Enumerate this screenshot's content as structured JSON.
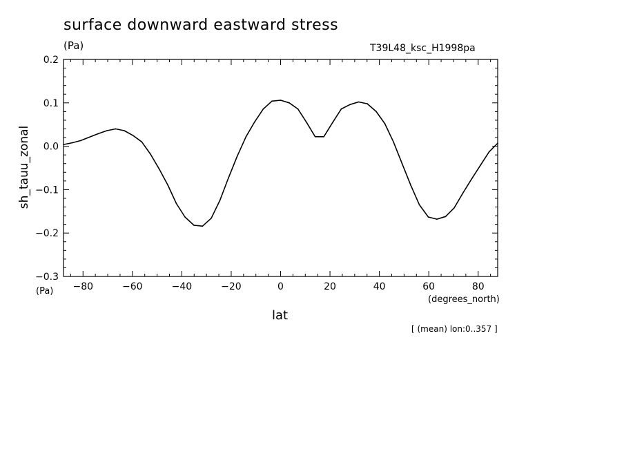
{
  "chart_data": {
    "type": "line",
    "title": "surface downward eastward stress",
    "units_top": "(Pa)",
    "run_label": "T39L48_ksc_H1998pa",
    "ylabel": "sh_tauu_zonal",
    "units_bottom": "(Pa)",
    "xlabel": "lat",
    "xunits": "(degrees_north)",
    "note": "[ (mean) lon:0..357 ]",
    "xlim": [
      -87.9,
      87.9
    ],
    "ylim": [
      -0.3,
      0.2
    ],
    "xticks": [
      "-80",
      "-60",
      "-40",
      "-20",
      "0",
      "20",
      "40",
      "60",
      "80"
    ],
    "yticks": [
      "-0.3",
      "-0.2",
      "-0.1",
      "0.0",
      "0.1",
      "0.2"
    ],
    "grid": false,
    "series": [
      {
        "color": "#000000",
        "x": [
          -87.9,
          -84.4,
          -80.9,
          -77.4,
          -73.8,
          -70.3,
          -66.8,
          -63.3,
          -59.8,
          -56.2,
          -52.7,
          -49.2,
          -45.7,
          -42.2,
          -38.7,
          -35.1,
          -31.6,
          -28.1,
          -24.6,
          -21.1,
          -17.5,
          -14.0,
          -10.5,
          -7.0,
          -3.5,
          0.0,
          3.5,
          7.0,
          10.5,
          14.0,
          17.5,
          21.1,
          24.6,
          28.1,
          31.6,
          35.1,
          38.7,
          42.2,
          45.7,
          49.2,
          52.7,
          56.2,
          59.8,
          63.3,
          66.8,
          70.3,
          73.8,
          77.4,
          80.9,
          84.4,
          87.9
        ],
        "y": [
          0.004,
          0.008,
          0.013,
          0.021,
          0.029,
          0.036,
          0.04,
          0.036,
          0.025,
          0.01,
          -0.018,
          -0.052,
          -0.089,
          -0.132,
          -0.163,
          -0.182,
          -0.184,
          -0.166,
          -0.125,
          -0.073,
          -0.022,
          0.022,
          0.056,
          0.086,
          0.104,
          0.106,
          0.1,
          0.086,
          0.055,
          0.022,
          0.022,
          0.055,
          0.086,
          0.096,
          0.102,
          0.098,
          0.08,
          0.052,
          0.01,
          -0.04,
          -0.09,
          -0.135,
          -0.163,
          -0.168,
          -0.162,
          -0.142,
          -0.108,
          -0.075,
          -0.044,
          -0.013,
          0.007
        ]
      }
    ]
  }
}
